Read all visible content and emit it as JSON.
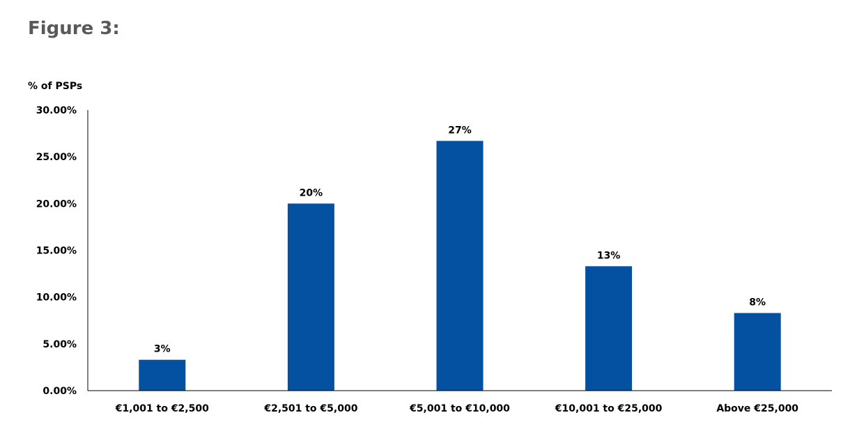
{
  "figure_title": "Figure 3:",
  "chart_data": {
    "type": "bar",
    "title": "",
    "xlabel": "",
    "ylabel": "% of PSPs",
    "ylim": [
      0,
      30
    ],
    "yticks": [
      0,
      5,
      10,
      15,
      20,
      25,
      30
    ],
    "ytick_labels": [
      "0.00%",
      "5.00%",
      "10.00%",
      "15.00%",
      "20.00%",
      "25.00%",
      "30.00%"
    ],
    "categories": [
      "€1,001 to €2,500",
      "€2,501 to €5,000",
      "€5,001 to €10,000",
      "€10,001 to €25,000",
      "Above €25,000"
    ],
    "values": [
      3.3,
      20.0,
      26.7,
      13.3,
      8.3
    ],
    "data_labels": [
      "3%",
      "20%",
      "27%",
      "13%",
      "8%"
    ],
    "bar_color": "#0450A1",
    "grid": false,
    "legend": "none"
  }
}
